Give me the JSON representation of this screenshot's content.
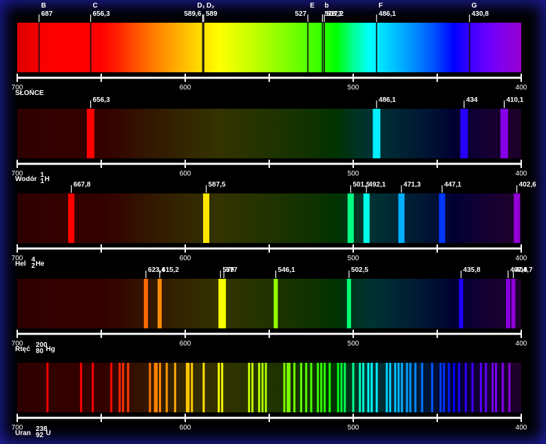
{
  "chart_data": [
    {
      "type": "spectrum",
      "title": "SŁOŃCE",
      "continuous": true,
      "xlim": [
        700,
        400
      ],
      "xticks": [
        700,
        600,
        500,
        400
      ],
      "xminor": [
        650,
        550,
        450
      ],
      "x": [
        687,
        656.3,
        589.6,
        589,
        527,
        518.3,
        517.2,
        486.1,
        430.8
      ],
      "value_labels": [
        "687",
        "656,3",
        "589,6",
        "589",
        "527",
        "518,3",
        "517,2",
        "486,1",
        "430,8"
      ],
      "names": [
        "B",
        "C",
        "D₁",
        "D₂",
        "E",
        "b",
        null,
        "F",
        "G"
      ]
    },
    {
      "type": "spectrum",
      "title": "Wodór",
      "isotope": {
        "mass": "1",
        "number": "1",
        "symbol": "H"
      },
      "continuous": false,
      "xlim": [
        700,
        400
      ],
      "xticks": [
        700,
        600,
        500,
        400
      ],
      "xminor": [
        650,
        550,
        450
      ],
      "x": [
        656.3,
        486.1,
        434,
        410.1
      ],
      "value_labels": [
        "656,3",
        "486,1",
        "434",
        "410,1"
      ]
    },
    {
      "type": "spectrum",
      "title": "Hel",
      "isotope": {
        "mass": "4",
        "number": "2",
        "symbol": "He"
      },
      "continuous": false,
      "xlim": [
        700,
        400
      ],
      "xticks": [
        700,
        600,
        500,
        400
      ],
      "xminor": [
        650,
        550,
        450
      ],
      "x": [
        667.8,
        587.5,
        501.5,
        492.1,
        471.3,
        447.1,
        402.6
      ],
      "value_labels": [
        "667,8",
        "587,5",
        "501,5",
        "492,1",
        "471,3",
        "447,1",
        "402,6"
      ]
    },
    {
      "type": "spectrum",
      "title": "Rtęć",
      "isotope": {
        "mass": "200",
        "number": "80",
        "symbol": "Hg"
      },
      "continuous": false,
      "xlim": [
        700,
        400
      ],
      "xticks": [
        700,
        600,
        500,
        400
      ],
      "xminor": [
        650,
        550,
        450
      ],
      "x": [
        623.4,
        615.2,
        579,
        577,
        546.1,
        502.5,
        435.8,
        407.8,
        404.7
      ],
      "value_labels": [
        "623,4",
        "615,2",
        "579",
        "577",
        "546,1",
        "502,5",
        "435,8",
        "407,8",
        "404,7"
      ]
    },
    {
      "type": "spectrum",
      "title": "Uran",
      "isotope": {
        "mass": "238",
        "number": "92",
        "symbol": "U"
      },
      "continuous": false,
      "xlim": [
        700,
        400
      ],
      "xticks": [
        700,
        600,
        500,
        400
      ],
      "xminor": [
        650,
        550,
        450
      ],
      "x": [
        682,
        662,
        655,
        644,
        639,
        637,
        634,
        621,
        618,
        617,
        615,
        611,
        606,
        599,
        598,
        596,
        589,
        580,
        578,
        562,
        560,
        556,
        554,
        552,
        541,
        539,
        538,
        535,
        531,
        528,
        525,
        521,
        519,
        517,
        514,
        509,
        507,
        505,
        500,
        496,
        494,
        491,
        489,
        486,
        480,
        478,
        475,
        473,
        471,
        468,
        466,
        463,
        459,
        453,
        448,
        446,
        443,
        440,
        437,
        433,
        429,
        424,
        421,
        417,
        415,
        411,
        407
      ]
    }
  ]
}
